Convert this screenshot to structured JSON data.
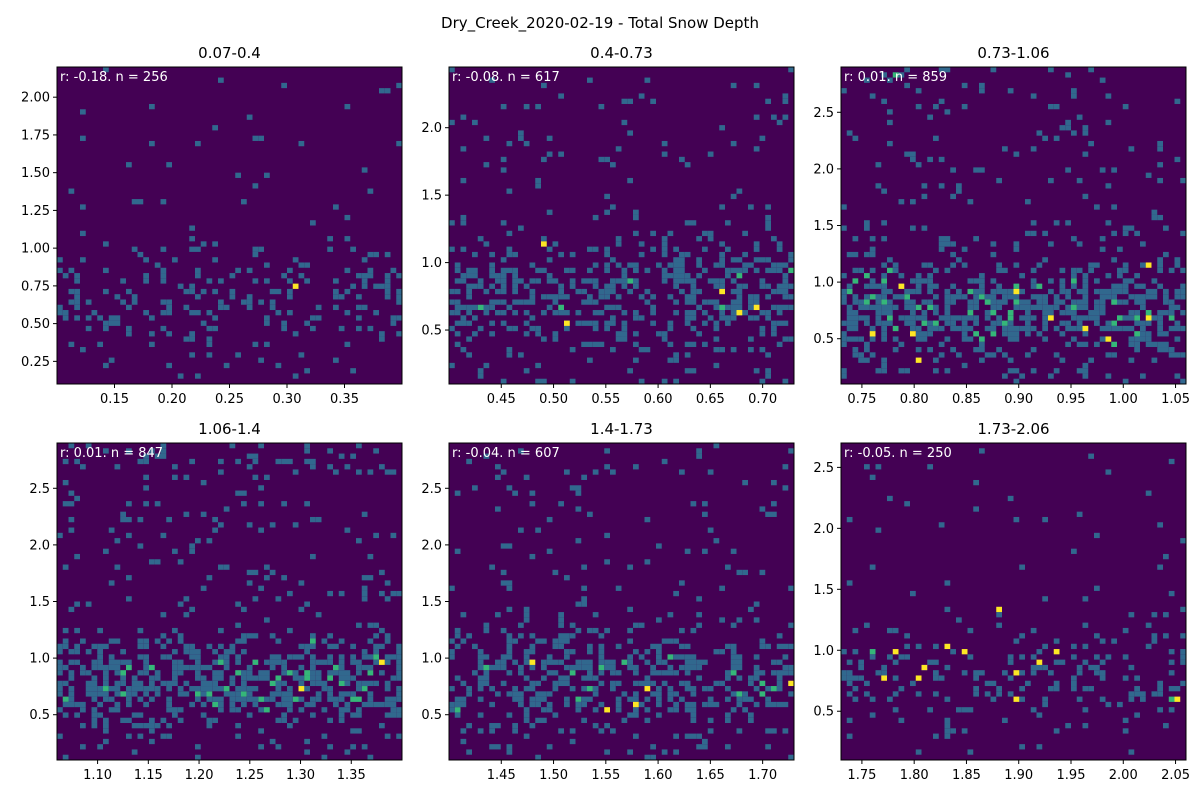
{
  "figure": {
    "title": "Dry_Creek_2020-02-19 - Total Snow Depth",
    "colormap": [
      "#440154",
      "#31688e",
      "#35b779",
      "#fde725"
    ],
    "background_color": "#440154"
  },
  "chart_data": [
    {
      "type": "heatmap",
      "title": "0.07-0.4",
      "annotation": "r: -0.18. n = 256",
      "n": 256,
      "seed": 11,
      "xlim": [
        0.1,
        0.4
      ],
      "ylim": [
        0.1,
        2.2
      ],
      "xticks": [
        0.15,
        0.2,
        0.25,
        0.3,
        0.35
      ],
      "xtick_labels": [
        "0.15",
        "0.20",
        "0.25",
        "0.30",
        "0.35"
      ],
      "yticks": [
        0.25,
        0.5,
        0.75,
        1.0,
        1.25,
        1.5,
        1.75,
        2.0
      ],
      "ytick_labels": [
        "0.25",
        "0.50",
        "0.75",
        "1.00",
        "1.25",
        "1.50",
        "1.75",
        "2.00"
      ],
      "bright_bins": [
        [
          0.31,
          0.75
        ]
      ],
      "density_center": 0.7,
      "density_spread": 0.35
    },
    {
      "type": "heatmap",
      "title": "0.4-0.73",
      "annotation": "r: -0.08. n = 617",
      "n": 617,
      "seed": 23,
      "xlim": [
        0.4,
        0.73
      ],
      "ylim": [
        0.1,
        2.45
      ],
      "xticks": [
        0.45,
        0.5,
        0.55,
        0.6,
        0.65,
        0.7
      ],
      "xtick_labels": [
        "0.45",
        "0.50",
        "0.55",
        "0.60",
        "0.65",
        "0.70"
      ],
      "yticks": [
        0.5,
        1.0,
        1.5,
        2.0
      ],
      "ytick_labels": [
        "0.5",
        "1.0",
        "1.5",
        "2.0"
      ],
      "bright_bins": [
        [
          0.49,
          1.12
        ],
        [
          0.51,
          0.56
        ],
        [
          0.66,
          0.8
        ],
        [
          0.68,
          0.62
        ],
        [
          0.695,
          0.65
        ]
      ],
      "density_center": 0.75,
      "density_spread": 0.4
    },
    {
      "type": "heatmap",
      "title": "0.73-1.06",
      "annotation": "r: 0.01. n = 859",
      "n": 859,
      "seed": 37,
      "xlim": [
        0.73,
        1.06
      ],
      "ylim": [
        0.1,
        2.9
      ],
      "xticks": [
        0.75,
        0.8,
        0.85,
        0.9,
        0.95,
        1.0,
        1.05
      ],
      "xtick_labels": [
        "0.75",
        "0.80",
        "0.85",
        "0.90",
        "0.95",
        "1.00",
        "1.05"
      ],
      "yticks": [
        0.5,
        1.0,
        1.5,
        2.0,
        2.5
      ],
      "ytick_labels": [
        "0.5",
        "1.0",
        "1.5",
        "2.0",
        "2.5"
      ],
      "bright_bins": [
        [
          0.76,
          0.55
        ],
        [
          0.79,
          0.97
        ],
        [
          0.8,
          0.55
        ],
        [
          0.805,
          0.33
        ],
        [
          0.9,
          0.9
        ],
        [
          0.93,
          0.7
        ],
        [
          0.965,
          0.58
        ],
        [
          0.985,
          0.5
        ],
        [
          1.025,
          1.17
        ],
        [
          1.025,
          0.67
        ]
      ],
      "density_center": 0.75,
      "density_spread": 0.4
    },
    {
      "type": "heatmap",
      "title": "1.06-1.4",
      "annotation": "r: 0.01. n = 847",
      "n": 847,
      "seed": 41,
      "xlim": [
        1.06,
        1.4
      ],
      "ylim": [
        0.1,
        2.9
      ],
      "xticks": [
        1.1,
        1.15,
        1.2,
        1.25,
        1.3,
        1.35
      ],
      "xtick_labels": [
        "1.10",
        "1.15",
        "1.20",
        "1.25",
        "1.30",
        "1.35"
      ],
      "yticks": [
        0.5,
        1.0,
        1.5,
        2.0,
        2.5
      ],
      "ytick_labels": [
        "0.5",
        "1.0",
        "1.5",
        "2.0",
        "2.5"
      ],
      "bright_bins": [
        [
          1.3,
          0.72
        ],
        [
          1.38,
          0.98
        ]
      ],
      "density_center": 0.8,
      "density_spread": 0.38
    },
    {
      "type": "heatmap",
      "title": "1.4-1.73",
      "annotation": "r: -0.04. n = 607",
      "n": 607,
      "seed": 53,
      "xlim": [
        1.4,
        1.73
      ],
      "ylim": [
        0.1,
        2.9
      ],
      "xticks": [
        1.45,
        1.5,
        1.55,
        1.6,
        1.65,
        1.7
      ],
      "xtick_labels": [
        "1.45",
        "1.50",
        "1.55",
        "1.60",
        "1.65",
        "1.70"
      ],
      "yticks": [
        0.5,
        1.0,
        1.5,
        2.0,
        2.5
      ],
      "ytick_labels": [
        "0.5",
        "1.0",
        "1.5",
        "2.0",
        "2.5"
      ],
      "bright_bins": [
        [
          1.48,
          0.98
        ],
        [
          1.55,
          0.53
        ],
        [
          1.58,
          0.58
        ],
        [
          1.59,
          0.72
        ],
        [
          1.725,
          0.78
        ]
      ],
      "density_center": 0.8,
      "density_spread": 0.45
    },
    {
      "type": "heatmap",
      "title": "1.73-2.06",
      "annotation": "r: -0.05. n = 250",
      "n": 250,
      "seed": 67,
      "xlim": [
        1.73,
        2.06
      ],
      "ylim": [
        0.1,
        2.7
      ],
      "xticks": [
        1.75,
        1.8,
        1.85,
        1.9,
        1.95,
        2.0,
        2.05
      ],
      "xtick_labels": [
        "1.75",
        "1.80",
        "1.85",
        "1.90",
        "1.95",
        "2.00",
        "2.05"
      ],
      "yticks": [
        0.5,
        1.0,
        1.5,
        2.0,
        2.5
      ],
      "ytick_labels": [
        "0.5",
        "1.0",
        "1.5",
        "2.0",
        "2.5"
      ],
      "bright_bins": [
        [
          1.77,
          0.78
        ],
        [
          1.785,
          1.0
        ],
        [
          1.805,
          0.78
        ],
        [
          1.81,
          0.87
        ],
        [
          1.83,
          1.04
        ],
        [
          1.85,
          1.0
        ],
        [
          1.88,
          1.35
        ],
        [
          1.895,
          0.83
        ],
        [
          1.9,
          0.6
        ],
        [
          1.92,
          0.9
        ],
        [
          1.935,
          0.97
        ],
        [
          2.05,
          0.6
        ]
      ],
      "density_center": 0.8,
      "density_spread": 0.4
    }
  ]
}
